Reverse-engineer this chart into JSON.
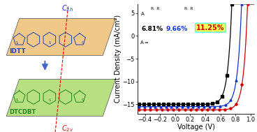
{
  "xlabel": "Voltage (V)",
  "ylabel": "Current Density (mA/cm²)",
  "xlim": [
    -0.5,
    1.05
  ],
  "ylim": [
    -17,
    7
  ],
  "yticks": [
    5,
    0,
    -5,
    -10,
    -15
  ],
  "xticks": [
    -0.4,
    -0.2,
    0.0,
    0.2,
    0.4,
    0.6,
    0.8,
    1.0
  ],
  "series": [
    {
      "label": "black",
      "color": "#000000",
      "marker": "s",
      "Jsc": -15.0,
      "Voc": 0.73,
      "n": 2.0
    },
    {
      "label": "blue",
      "color": "#1133cc",
      "marker": "^",
      "Jsc": -15.5,
      "Voc": 0.86,
      "n": 2.0
    },
    {
      "label": "red",
      "color": "#cc0000",
      "marker": "o",
      "Jsc": -16.2,
      "Voc": 0.94,
      "n": 2.0
    }
  ],
  "pce_black": "6.81%",
  "pce_blue": "9.66%",
  "pce_red": "11.25%",
  "bg_top": "#f0c888",
  "bg_bot": "#b8e080",
  "mol_top_color": "#2244bb",
  "mol_bot_color": "#228822",
  "c2h_color": "#1133cc",
  "c2v_color": "#cc1111",
  "axis_label_fontsize": 7,
  "tick_fontsize": 6,
  "pce_fontsize": 6.5
}
